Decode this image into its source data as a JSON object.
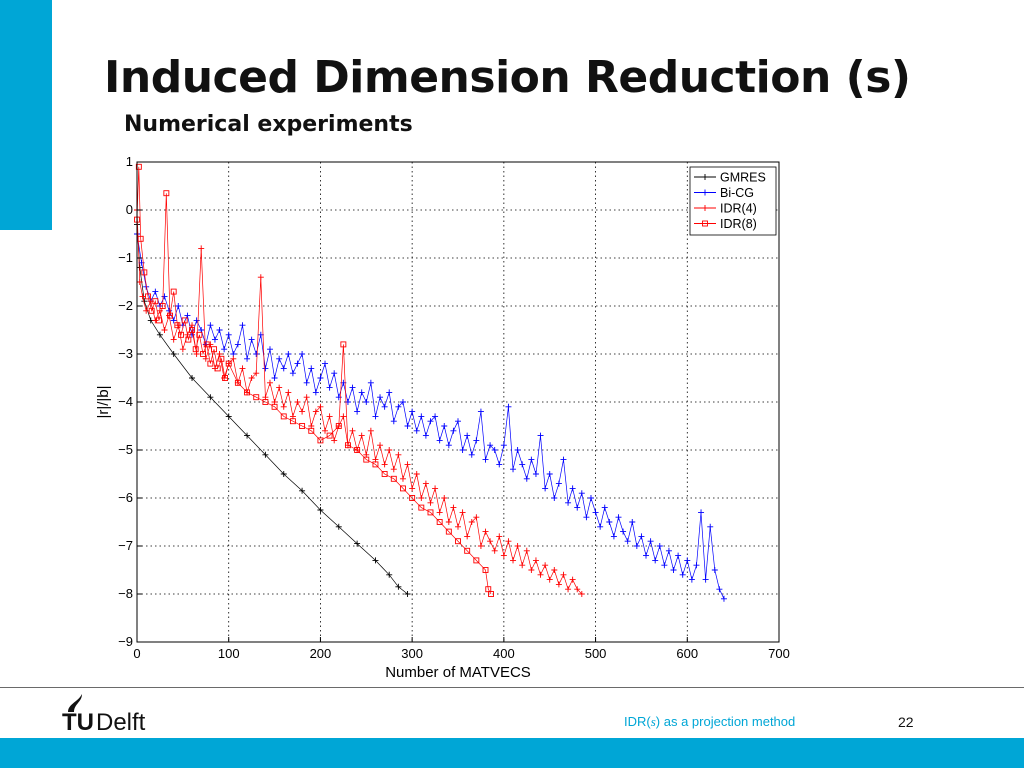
{
  "slide": {
    "title": "Induced Dimension Reduction (s)",
    "subtitle": "Numerical experiments",
    "footer_prefix": "IDR(",
    "footer_var": "s",
    "footer_suffix": ") as a projection method",
    "page_number": "22",
    "logo_text_tu": "TU",
    "logo_text_delft": "Delft",
    "accent_color": "#00a6d6"
  },
  "chart_data": {
    "type": "line",
    "title": "",
    "xlabel": "Number of MATVECS",
    "ylabel": "|r|/|b|",
    "xlim": [
      0,
      700
    ],
    "ylim": [
      -9,
      1
    ],
    "xticks": [
      0,
      100,
      200,
      300,
      400,
      500,
      600,
      700
    ],
    "yticks": [
      1,
      0,
      -1,
      -2,
      -3,
      -4,
      -5,
      -6,
      -7,
      -8,
      -9
    ],
    "ytick_labels": [
      "1",
      "0",
      "−1",
      "−2",
      "−3",
      "−4",
      "−5",
      "−6",
      "−7",
      "−8",
      "−9"
    ],
    "grid": true,
    "legend_position": "top-right",
    "series": [
      {
        "name": "GMRES",
        "color": "#000000",
        "marker": "plus",
        "x": [
          0,
          3,
          8,
          15,
          25,
          40,
          60,
          80,
          100,
          120,
          140,
          160,
          180,
          200,
          220,
          240,
          260,
          275,
          285,
          295
        ],
        "y": [
          -0.3,
          -1.2,
          -1.9,
          -2.3,
          -2.6,
          -3.0,
          -3.5,
          -3.9,
          -4.3,
          -4.7,
          -5.1,
          -5.5,
          -5.85,
          -6.25,
          -6.6,
          -6.95,
          -7.3,
          -7.6,
          -7.85,
          -8.0
        ]
      },
      {
        "name": "Bi-CG",
        "color": "#0000ff",
        "marker": "plus",
        "x": [
          0,
          5,
          10,
          15,
          20,
          25,
          30,
          35,
          40,
          45,
          50,
          55,
          60,
          65,
          70,
          75,
          80,
          85,
          90,
          95,
          100,
          105,
          110,
          115,
          120,
          125,
          130,
          135,
          140,
          145,
          150,
          155,
          160,
          165,
          170,
          175,
          180,
          185,
          190,
          195,
          200,
          205,
          210,
          215,
          220,
          225,
          230,
          235,
          240,
          245,
          250,
          255,
          260,
          265,
          270,
          275,
          280,
          285,
          290,
          295,
          300,
          305,
          310,
          315,
          320,
          325,
          330,
          335,
          340,
          345,
          350,
          355,
          360,
          365,
          370,
          375,
          380,
          385,
          390,
          395,
          400,
          405,
          410,
          415,
          420,
          425,
          430,
          435,
          440,
          445,
          450,
          455,
          460,
          465,
          470,
          475,
          480,
          485,
          490,
          495,
          500,
          505,
          510,
          515,
          520,
          525,
          530,
          535,
          540,
          545,
          550,
          555,
          560,
          565,
          570,
          575,
          580,
          585,
          590,
          595,
          600,
          605,
          610,
          615,
          620,
          625,
          630,
          635,
          640
        ],
        "y": [
          -0.5,
          -1.1,
          -1.6,
          -1.9,
          -1.7,
          -2.0,
          -1.8,
          -2.1,
          -2.3,
          -2.0,
          -2.4,
          -2.2,
          -2.6,
          -2.3,
          -2.5,
          -2.8,
          -2.4,
          -2.7,
          -2.5,
          -2.9,
          -2.6,
          -3.0,
          -2.8,
          -2.4,
          -3.1,
          -2.7,
          -3.0,
          -2.6,
          -3.3,
          -2.9,
          -3.5,
          -3.1,
          -3.3,
          -3.0,
          -3.4,
          -3.2,
          -3.0,
          -3.6,
          -3.3,
          -3.8,
          -3.5,
          -3.2,
          -3.7,
          -3.4,
          -3.9,
          -3.6,
          -4.0,
          -3.7,
          -4.2,
          -3.8,
          -4.0,
          -3.6,
          -4.3,
          -3.9,
          -4.1,
          -3.8,
          -4.4,
          -4.1,
          -4.0,
          -4.5,
          -4.2,
          -4.6,
          -4.3,
          -4.7,
          -4.4,
          -4.3,
          -4.8,
          -4.5,
          -4.9,
          -4.6,
          -4.4,
          -5.0,
          -4.7,
          -5.1,
          -4.8,
          -4.2,
          -5.2,
          -4.9,
          -5.0,
          -5.3,
          -4.9,
          -4.1,
          -5.4,
          -5.0,
          -5.3,
          -5.6,
          -5.2,
          -5.5,
          -4.7,
          -5.8,
          -5.5,
          -6.0,
          -5.7,
          -5.2,
          -6.1,
          -5.8,
          -6.2,
          -5.9,
          -6.4,
          -6.0,
          -6.3,
          -6.6,
          -6.2,
          -6.5,
          -6.8,
          -6.4,
          -6.7,
          -6.9,
          -6.5,
          -7.0,
          -6.8,
          -7.2,
          -6.9,
          -7.3,
          -7.0,
          -7.4,
          -7.1,
          -7.5,
          -7.2,
          -7.6,
          -7.3,
          -7.7,
          -7.4,
          -6.3,
          -7.7,
          -6.6,
          -7.5,
          -7.9,
          -8.1
        ]
      },
      {
        "name": "IDR(4)",
        "color": "#ff0000",
        "marker": "plus",
        "x": [
          0,
          3,
          6,
          10,
          15,
          20,
          25,
          30,
          35,
          40,
          45,
          50,
          55,
          60,
          65,
          70,
          75,
          80,
          85,
          90,
          95,
          100,
          105,
          110,
          115,
          120,
          125,
          130,
          135,
          140,
          145,
          150,
          155,
          160,
          165,
          170,
          175,
          180,
          185,
          190,
          195,
          200,
          205,
          210,
          215,
          220,
          225,
          230,
          235,
          240,
          245,
          250,
          255,
          260,
          265,
          270,
          275,
          280,
          285,
          290,
          295,
          300,
          305,
          310,
          315,
          320,
          325,
          330,
          335,
          340,
          345,
          350,
          355,
          360,
          365,
          370,
          375,
          380,
          385,
          390,
          395,
          400,
          405,
          410,
          415,
          420,
          425,
          430,
          435,
          440,
          445,
          450,
          455,
          460,
          465,
          470,
          475,
          480,
          485
        ],
        "y": [
          0.0,
          -1.5,
          -1.8,
          -2.1,
          -1.9,
          -2.3,
          -2.1,
          -2.5,
          -2.2,
          -2.7,
          -2.4,
          -2.9,
          -2.6,
          -2.4,
          -3.0,
          -0.8,
          -3.1,
          -2.8,
          -3.3,
          -3.0,
          -3.5,
          -3.2,
          -3.1,
          -3.6,
          -3.3,
          -3.8,
          -3.5,
          -3.4,
          -1.4,
          -3.9,
          -3.6,
          -4.0,
          -3.7,
          -4.1,
          -3.8,
          -4.3,
          -4.0,
          -4.2,
          -3.9,
          -4.5,
          -4.2,
          -4.1,
          -4.6,
          -4.3,
          -4.8,
          -4.5,
          -4.3,
          -4.9,
          -4.6,
          -5.0,
          -4.7,
          -5.1,
          -4.6,
          -5.2,
          -4.9,
          -5.3,
          -5.0,
          -5.4,
          -5.1,
          -5.6,
          -5.3,
          -5.8,
          -5.5,
          -6.0,
          -5.7,
          -6.1,
          -5.8,
          -6.3,
          -6.0,
          -6.5,
          -6.2,
          -6.6,
          -6.3,
          -6.8,
          -6.5,
          -6.4,
          -7.0,
          -6.7,
          -6.9,
          -7.1,
          -6.8,
          -7.2,
          -6.9,
          -7.3,
          -7.0,
          -7.4,
          -7.1,
          -7.5,
          -7.3,
          -7.6,
          -7.4,
          -7.7,
          -7.5,
          -7.8,
          -7.6,
          -7.9,
          -7.7,
          -7.9,
          -8.0
        ]
      },
      {
        "name": "IDR(8)",
        "color": "#ff0000",
        "marker": "square",
        "x": [
          0,
          2,
          4,
          8,
          12,
          16,
          20,
          24,
          28,
          32,
          36,
          40,
          44,
          48,
          52,
          56,
          60,
          64,
          68,
          72,
          76,
          80,
          84,
          88,
          92,
          96,
          100,
          110,
          120,
          130,
          140,
          150,
          160,
          170,
          180,
          190,
          200,
          210,
          220,
          225,
          230,
          240,
          250,
          260,
          270,
          280,
          290,
          300,
          310,
          320,
          330,
          340,
          350,
          360,
          370,
          380,
          383,
          386
        ],
        "y": [
          -0.2,
          0.9,
          -0.6,
          -1.3,
          -1.8,
          -2.1,
          -1.9,
          -2.3,
          -2.0,
          0.35,
          -2.2,
          -1.7,
          -2.4,
          -2.6,
          -2.3,
          -2.7,
          -2.5,
          -2.9,
          -2.6,
          -3.0,
          -2.8,
          -3.2,
          -2.9,
          -3.3,
          -3.1,
          -3.5,
          -3.2,
          -3.6,
          -3.8,
          -3.9,
          -4.0,
          -4.1,
          -4.3,
          -4.4,
          -4.5,
          -4.6,
          -4.8,
          -4.7,
          -4.5,
          -2.8,
          -4.9,
          -5.0,
          -5.2,
          -5.3,
          -5.5,
          -5.6,
          -5.8,
          -6.0,
          -6.2,
          -6.3,
          -6.5,
          -6.7,
          -6.9,
          -7.1,
          -7.3,
          -7.5,
          -7.9,
          -8.0
        ]
      }
    ]
  }
}
